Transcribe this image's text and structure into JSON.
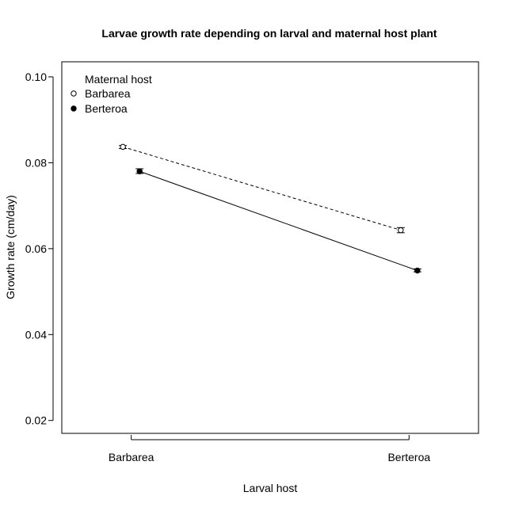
{
  "chart_data": {
    "type": "line",
    "title": "Larvae growth rate depending on larval and maternal host plant",
    "xlabel": "Larval host",
    "ylabel": "Growth rate (cm/day)",
    "categories": [
      "Barbarea",
      "Berteroa"
    ],
    "ylim": [
      0.017,
      0.1035
    ],
    "yticks": [
      0.02,
      0.04,
      0.06,
      0.08,
      0.1
    ],
    "ytick_labels": [
      "0.02",
      "0.04",
      "0.06",
      "0.08",
      "0.10"
    ],
    "grid": false,
    "legend": {
      "title": "Maternal host",
      "placement": "top-left",
      "entries": [
        "Barbarea",
        "Berteroa"
      ]
    },
    "series": [
      {
        "name": "Barbarea",
        "marker": "open-circle",
        "line": "dashed",
        "values": [
          0.0837,
          0.0643
        ],
        "err_low": [
          0.0833,
          0.0637
        ],
        "err_high": [
          0.084,
          0.0649
        ],
        "x_offset": -0.03
      },
      {
        "name": "Berteroa",
        "marker": "filled-circle",
        "line": "solid",
        "values": [
          0.078,
          0.0549
        ],
        "err_low": [
          0.0775,
          0.0546
        ],
        "err_high": [
          0.0786,
          0.0553
        ],
        "x_offset": 0.03
      }
    ]
  }
}
